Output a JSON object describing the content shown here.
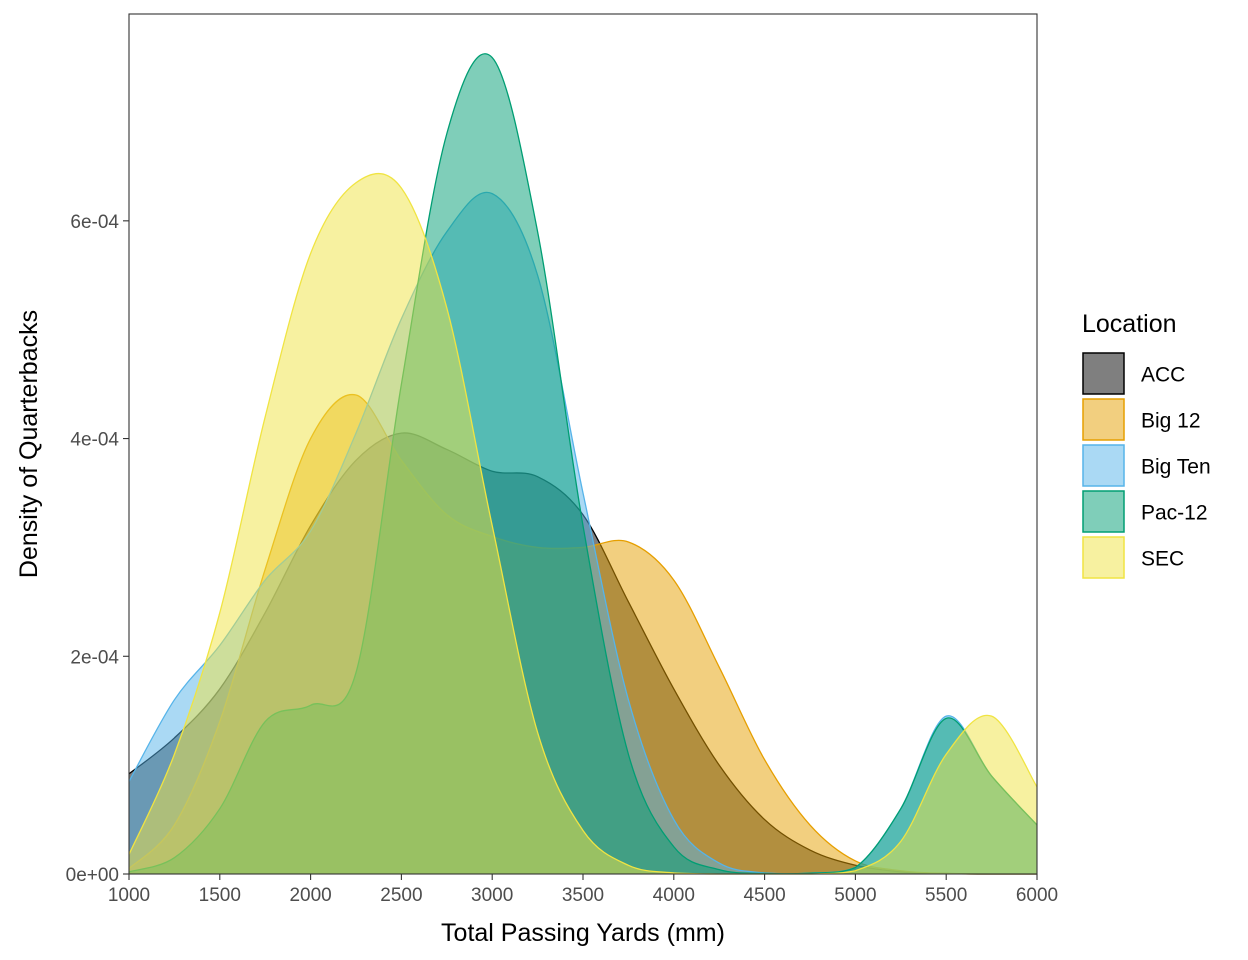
{
  "chart_data": {
    "type": "area",
    "subtype": "density",
    "xlabel": "Total Passing Yards (mm)",
    "ylabel": "Density of Quarterbacks",
    "xlim": [
      1000,
      6000
    ],
    "ylim": [
      0,
      0.00079
    ],
    "x_ticks": [
      1000,
      1500,
      2000,
      2500,
      3000,
      3500,
      4000,
      4500,
      5000,
      5500,
      6000
    ],
    "x_tick_labels": [
      "1000",
      "1500",
      "2000",
      "2500",
      "3000",
      "3500",
      "4000",
      "4500",
      "5000",
      "5500",
      "6000"
    ],
    "y_ticks": [
      0,
      0.0002,
      0.0004,
      0.0006
    ],
    "y_tick_labels": [
      "0e+00",
      "2e-04",
      "4e-04",
      "6e-04"
    ],
    "grid": false,
    "legend": {
      "title": "Location",
      "position": "right"
    },
    "x": [
      1000,
      1250,
      1500,
      1750,
      2000,
      2250,
      2500,
      2750,
      3000,
      3250,
      3500,
      3750,
      4000,
      4250,
      4500,
      4750,
      5000,
      5250,
      5500,
      5750,
      6000
    ],
    "series": [
      {
        "name": "ACC",
        "fill": "#000000",
        "stroke": "#000000",
        "values": [
          9.2e-05,
          0.000125,
          0.00017,
          0.00024,
          0.00032,
          0.00038,
          0.000405,
          0.00039,
          0.00037,
          0.000365,
          0.00033,
          0.00025,
          0.00017,
          0.0001,
          5e-05,
          2.2e-05,
          8e-06,
          2e-06,
          5e-07,
          0,
          0
        ]
      },
      {
        "name": "Big 12",
        "fill": "#E69F00",
        "stroke": "#E69F00",
        "values": [
          5e-06,
          4.5e-05,
          0.00014,
          0.00028,
          0.0004,
          0.00044,
          0.00038,
          0.00033,
          0.00031,
          0.0003,
          0.0003,
          0.000305,
          0.00027,
          0.00019,
          0.000105,
          4.5e-05,
          1.2e-05,
          3e-06,
          5e-07,
          0,
          0
        ]
      },
      {
        "name": "Big Ten",
        "fill": "#56B4E9",
        "stroke": "#56B4E9",
        "values": [
          8.5e-05,
          0.00016,
          0.00021,
          0.00027,
          0.000315,
          0.000405,
          0.00051,
          0.00059,
          0.000625,
          0.00055,
          0.00035,
          0.00016,
          5e-05,
          1e-05,
          1e-06,
          8e-07,
          6e-06,
          6e-05,
          0.000145,
          9e-05,
          4.5e-05
        ]
      },
      {
        "name": "Pac-12",
        "fill": "#009E73",
        "stroke": "#009E73",
        "values": [
          2e-06,
          1.5e-05,
          6e-05,
          0.00014,
          0.000155,
          0.000185,
          0.00045,
          0.00068,
          0.00075,
          0.00059,
          0.00032,
          0.00011,
          2.5e-05,
          4e-06,
          5e-07,
          8e-07,
          6e-06,
          6e-05,
          0.000143,
          9e-05,
          4.5e-05
        ]
      },
      {
        "name": "SEC",
        "fill": "#F0E442",
        "stroke": "#F0E442",
        "values": [
          1.8e-05,
          0.00011,
          0.00024,
          0.00042,
          0.00057,
          0.000635,
          0.00063,
          0.00052,
          0.00032,
          0.00013,
          4e-05,
          8e-06,
          1e-06,
          0,
          0,
          0,
          3e-06,
          3e-05,
          0.00011,
          0.000145,
          8e-05
        ]
      }
    ]
  }
}
